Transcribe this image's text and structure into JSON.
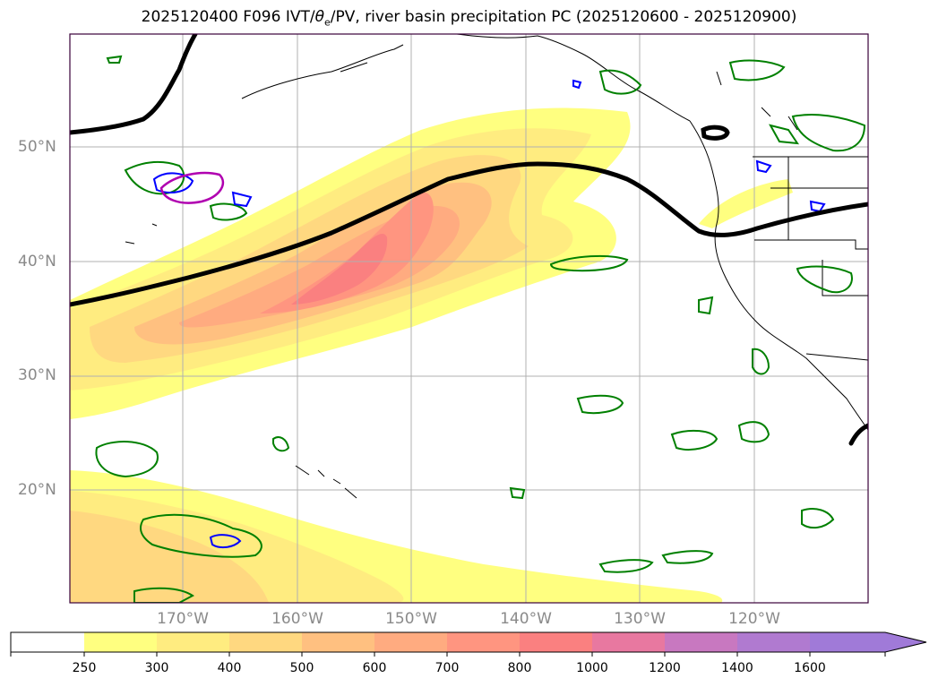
{
  "title": {
    "prefix": "2025120400 F096 IVT/",
    "theta": "θ",
    "theta_sub": "e",
    "suffix": "/PV, river basin precipitation PC (2025120600 - 2025120900)"
  },
  "map": {
    "lat_labels": [
      "50°N",
      "40°N",
      "30°N",
      "20°N"
    ],
    "lon_labels": [
      "170°W",
      "160°W",
      "150°W",
      "140°W",
      "130°W",
      "120°W"
    ],
    "colors": {
      "ivt_250": "#ffff80",
      "ivt_300": "#ffec80",
      "ivt_400": "#ffd880",
      "ivt_500": "#ffc080",
      "ivt_600": "#ffab80",
      "ivt_700": "#ff9580",
      "ivt_800": "#fa8080",
      "pv_contour": "#000000",
      "precip_pc": "#008000",
      "blue_contour": "#0000ff",
      "magenta_contour": "#b000b0",
      "coast": "#000000",
      "grid": "#b0b0b0",
      "frame": "#3a003a"
    }
  },
  "colorbar": {
    "ticks": [
      "250",
      "300",
      "400",
      "500",
      "600",
      "700",
      "800",
      "1000",
      "1200",
      "1400",
      "1600"
    ],
    "colors": [
      "#ffffff",
      "#ffff80",
      "#ffec80",
      "#ffd880",
      "#ffc080",
      "#ffab80",
      "#ff9580",
      "#fa8080",
      "#e878a0",
      "#c878c0",
      "#b07ad0",
      "#a07ad8"
    ]
  }
}
